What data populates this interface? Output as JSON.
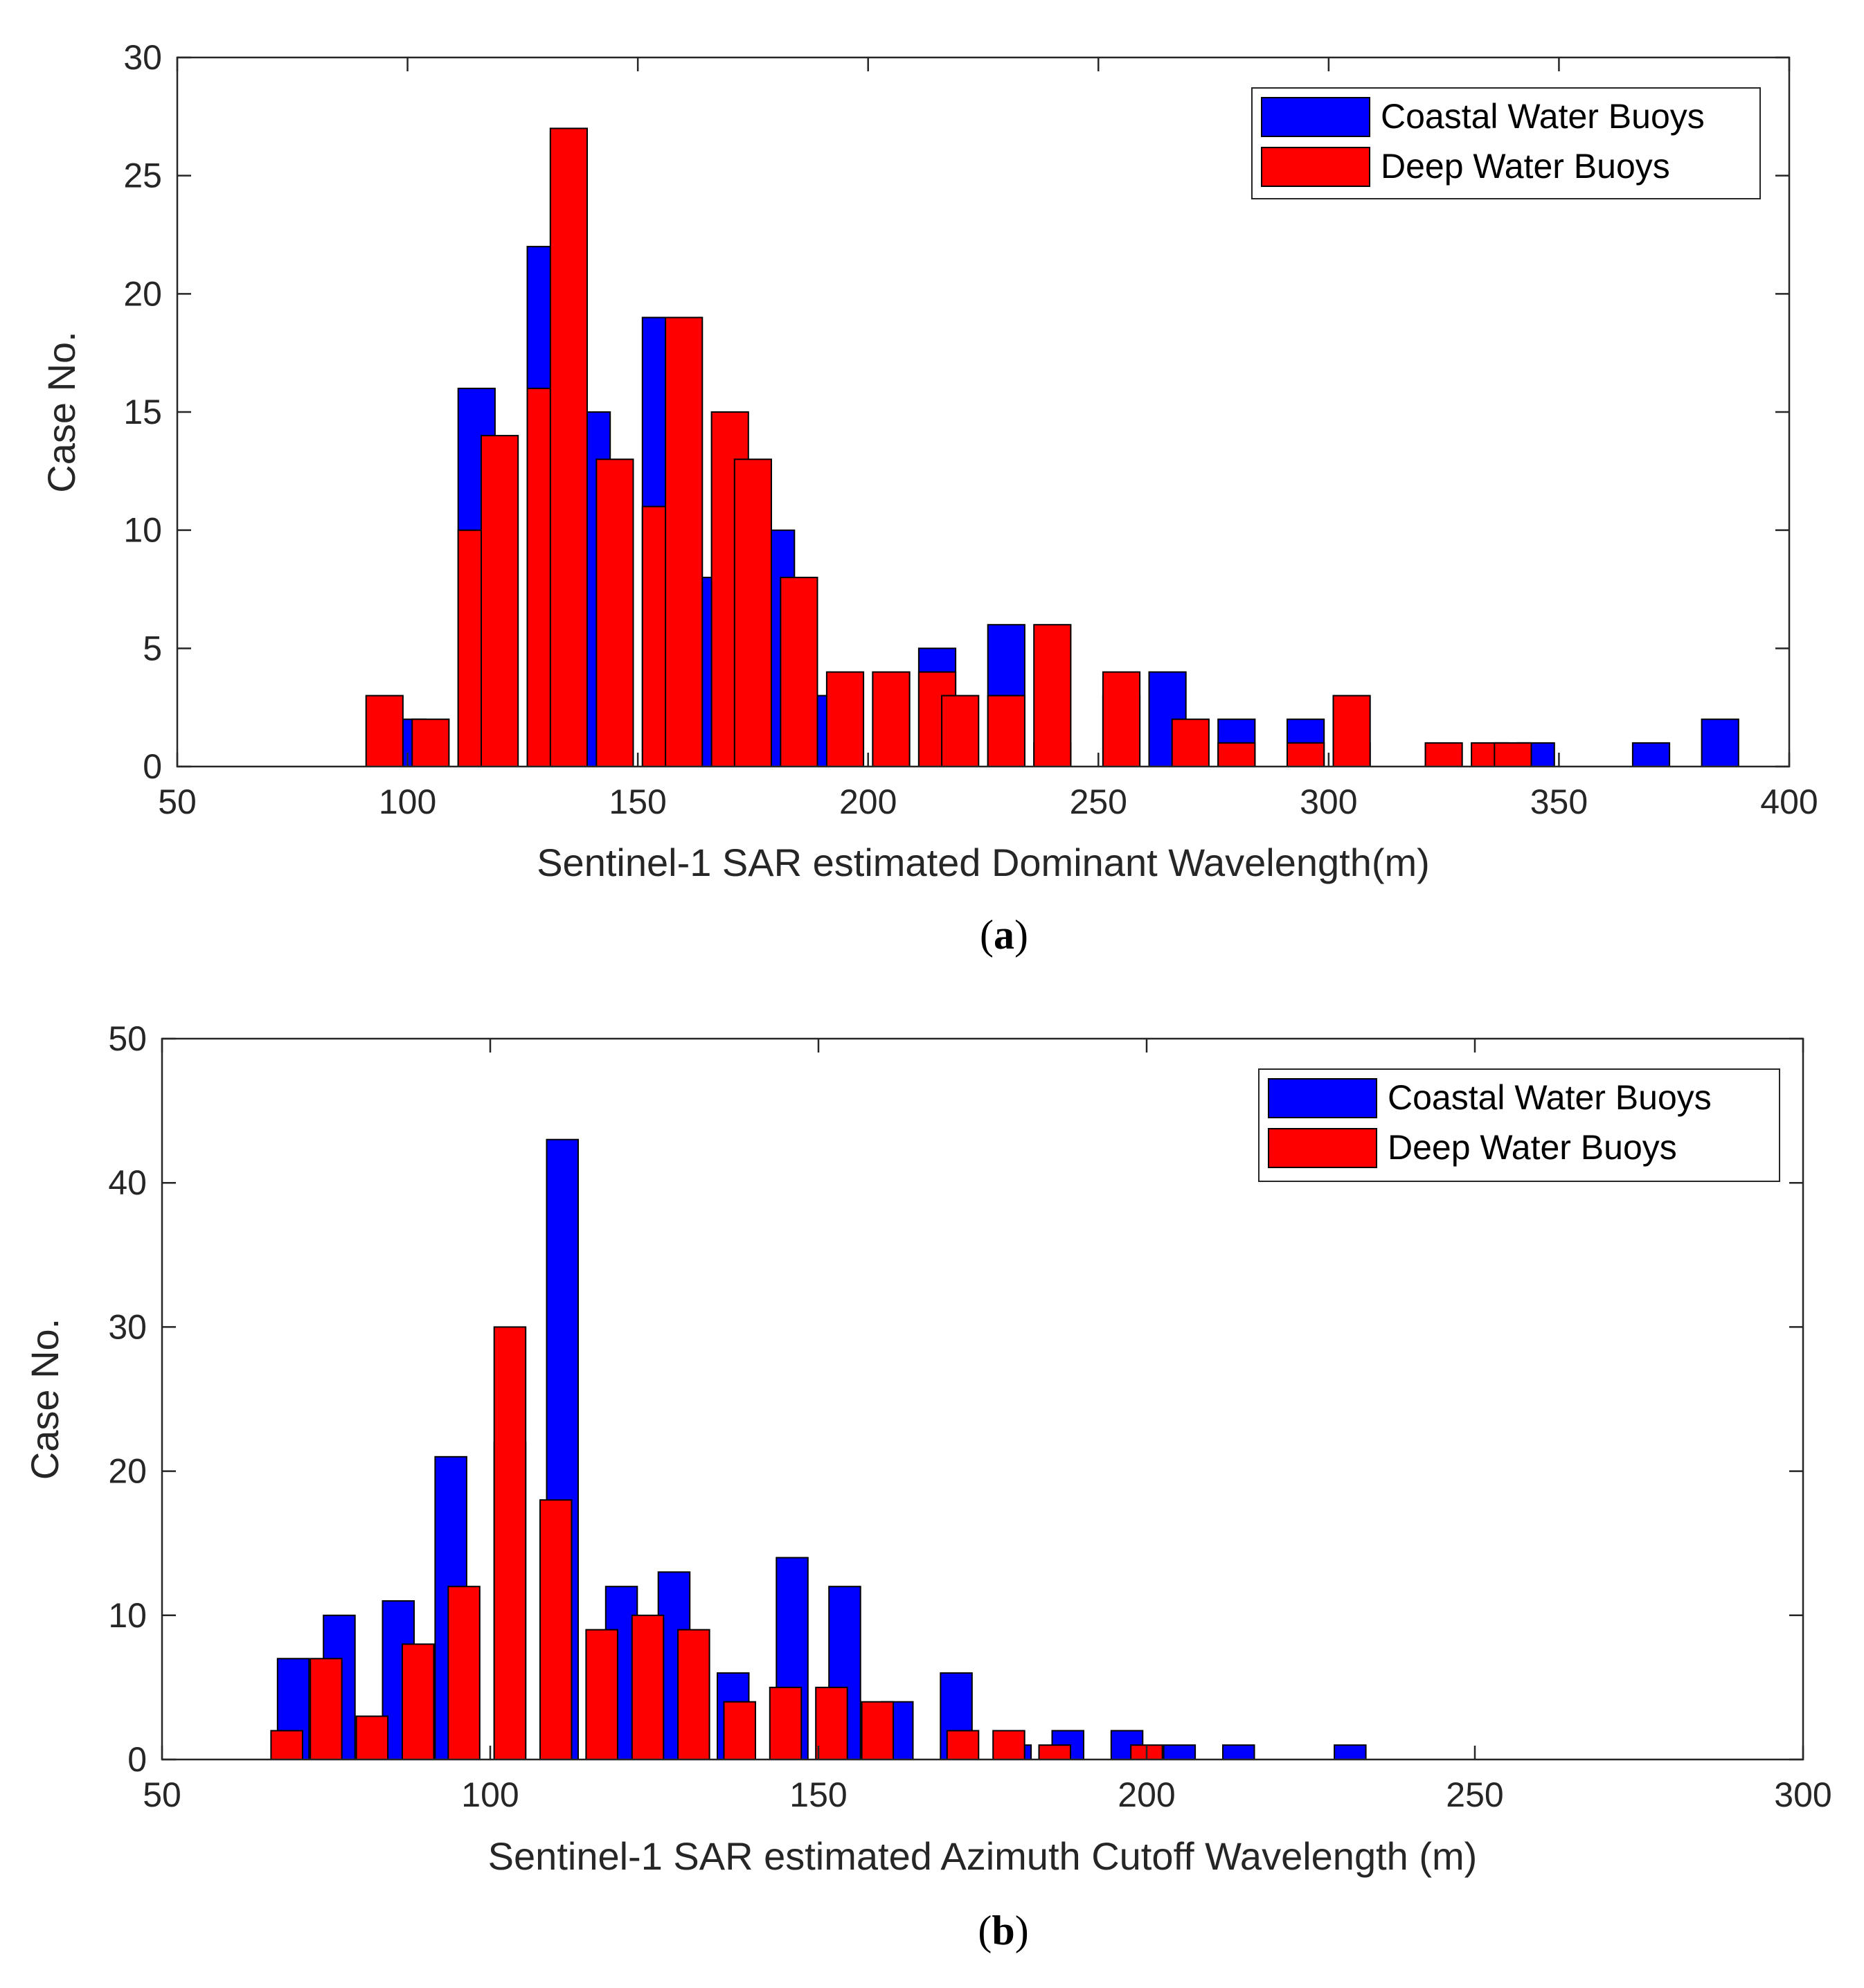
{
  "chart_data": [
    {
      "type": "bar",
      "panel": "a",
      "caption_letter": "a",
      "xlabel": "Sentinel-1 SAR estimated Dominant Wavelength(m)",
      "ylabel": "Case No.",
      "xlim": [
        50,
        400
      ],
      "ylim": [
        0,
        30
      ],
      "xticks": [
        50,
        100,
        150,
        200,
        250,
        300,
        350,
        400
      ],
      "yticks": [
        0,
        5,
        10,
        15,
        20,
        25,
        30
      ],
      "bin_width": 10,
      "legend_position": "top-right",
      "grid": false,
      "series": [
        {
          "name": "Coastal Water Buoys",
          "color": "#0000ff",
          "points": [
            [
              100,
              2
            ],
            [
              115,
              16
            ],
            [
              130,
              22
            ],
            [
              140,
              15
            ],
            [
              155,
              19
            ],
            [
              165,
              8
            ],
            [
              180,
              10
            ],
            [
              190,
              3
            ],
            [
              205,
              4
            ],
            [
              215,
              5
            ],
            [
              230,
              6
            ],
            [
              240,
              1
            ],
            [
              255,
              3
            ],
            [
              265,
              4
            ],
            [
              280,
              2
            ],
            [
              295,
              2
            ],
            [
              305,
              1
            ],
            [
              345,
              1
            ],
            [
              370,
              1
            ],
            [
              385,
              2
            ]
          ]
        },
        {
          "name": "Deep Water Buoys",
          "color": "#ff0000",
          "points": [
            [
              95,
              3
            ],
            [
              105,
              2
            ],
            [
              115,
              10
            ],
            [
              120,
              14
            ],
            [
              130,
              16
            ],
            [
              135,
              27
            ],
            [
              145,
              13
            ],
            [
              155,
              11
            ],
            [
              160,
              19
            ],
            [
              170,
              15
            ],
            [
              175,
              13
            ],
            [
              185,
              8
            ],
            [
              195,
              4
            ],
            [
              205,
              4
            ],
            [
              215,
              4
            ],
            [
              220,
              3
            ],
            [
              230,
              3
            ],
            [
              240,
              6
            ],
            [
              255,
              4
            ],
            [
              270,
              2
            ],
            [
              280,
              1
            ],
            [
              295,
              1
            ],
            [
              305,
              3
            ],
            [
              325,
              1
            ],
            [
              335,
              1
            ],
            [
              340,
              1
            ]
          ]
        }
      ]
    },
    {
      "type": "bar",
      "panel": "b",
      "caption_letter": "b",
      "xlabel": "Sentinel-1 SAR estimated Azimuth Cutoff Wavelength (m)",
      "ylabel": "Case No.",
      "xlim": [
        50,
        300
      ],
      "ylim": [
        0,
        50
      ],
      "xticks": [
        50,
        100,
        150,
        200,
        250,
        300
      ],
      "yticks": [
        0,
        10,
        20,
        30,
        40,
        50
      ],
      "bin_width": 6,
      "legend_position": "top-right",
      "grid": false,
      "series": [
        {
          "name": "Coastal Water Buoys",
          "color": "#0000ff",
          "points": [
            [
              70,
              7
            ],
            [
              77,
              10
            ],
            [
              86,
              11
            ],
            [
              94,
              21
            ],
            [
              103,
              22
            ],
            [
              111,
              43
            ],
            [
              120,
              12
            ],
            [
              128,
              13
            ],
            [
              137,
              6
            ],
            [
              146,
              14
            ],
            [
              154,
              12
            ],
            [
              162,
              4
            ],
            [
              171,
              6
            ],
            [
              180,
              1
            ],
            [
              188,
              2
            ],
            [
              197,
              2
            ],
            [
              205,
              1
            ],
            [
              214,
              1
            ],
            [
              231,
              1
            ]
          ]
        },
        {
          "name": "Deep Water Buoys",
          "color": "#ff0000",
          "points": [
            [
              69,
              2
            ],
            [
              75,
              7
            ],
            [
              82,
              3
            ],
            [
              89,
              8
            ],
            [
              96,
              12
            ],
            [
              103,
              30
            ],
            [
              110,
              18
            ],
            [
              117,
              9
            ],
            [
              124,
              10
            ],
            [
              131,
              9
            ],
            [
              138,
              4
            ],
            [
              145,
              5
            ],
            [
              152,
              5
            ],
            [
              159,
              4
            ],
            [
              172,
              2
            ],
            [
              179,
              2
            ],
            [
              186,
              1
            ],
            [
              200,
              1
            ]
          ]
        }
      ]
    }
  ]
}
